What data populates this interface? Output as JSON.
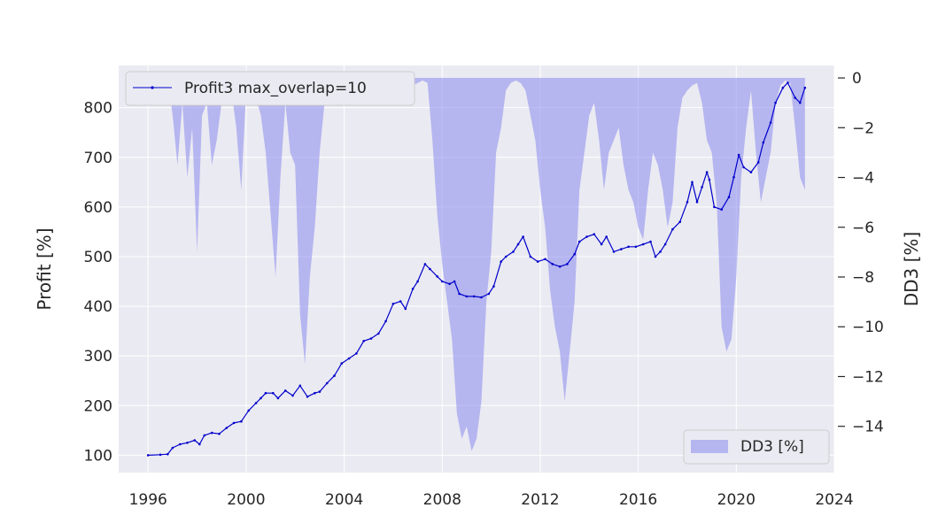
{
  "chart_data": {
    "type": "line",
    "title": "",
    "xlabel": "",
    "ylabel": "Profit [%]",
    "y2label": "DD3 [%]",
    "xlim": [
      1994.8,
      2024.0
    ],
    "ylim": [
      65,
      885
    ],
    "y2lim": [
      -15.86,
      0.5
    ],
    "grid": true,
    "background": "#eaeaf2",
    "x_ticks": [
      1996,
      2000,
      2004,
      2008,
      2012,
      2016,
      2020,
      2024
    ],
    "y_ticks": [
      100,
      200,
      300,
      400,
      500,
      600,
      700,
      800
    ],
    "y2_ticks": [
      0,
      -2,
      -4,
      -6,
      -8,
      -10,
      -12,
      -14
    ],
    "y2_tick_labels": [
      "0",
      "−2",
      "−4",
      "−6",
      "−8",
      "−10",
      "−12",
      "−14"
    ],
    "legends": [
      {
        "label": "Profit3 max_overlap=10",
        "placement": "top-left",
        "kind": "line"
      },
      {
        "label": "DD3 [%]",
        "placement": "bottom-right",
        "kind": "area"
      }
    ],
    "series": [
      {
        "name": "Profit3 max_overlap=10",
        "axis": "left",
        "kind": "line",
        "color": "#0000cc",
        "x": [
          1996.0,
          1996.5,
          1996.8,
          1997.0,
          1997.3,
          1997.6,
          1997.9,
          1998.1,
          1998.3,
          1998.6,
          1998.9,
          1999.2,
          1999.5,
          1999.8,
          2000.1,
          2000.4,
          2000.6,
          2000.8,
          2001.1,
          2001.3,
          2001.6,
          2001.9,
          2002.2,
          2002.5,
          2002.8,
          2003.0,
          2003.3,
          2003.6,
          2003.9,
          2004.2,
          2004.5,
          2004.8,
          2005.1,
          2005.4,
          2005.7,
          2006.0,
          2006.3,
          2006.5,
          2006.8,
          2007.0,
          2007.3,
          2007.5,
          2007.8,
          2008.0,
          2008.3,
          2008.5,
          2008.7,
          2009.0,
          2009.3,
          2009.6,
          2009.9,
          2010.1,
          2010.4,
          2010.6,
          2010.9,
          2011.1,
          2011.3,
          2011.6,
          2011.9,
          2012.2,
          2012.5,
          2012.8,
          2013.1,
          2013.4,
          2013.6,
          2013.9,
          2014.2,
          2014.5,
          2014.7,
          2015.0,
          2015.3,
          2015.6,
          2015.9,
          2016.2,
          2016.5,
          2016.7,
          2016.9,
          2017.1,
          2017.4,
          2017.7,
          2018.0,
          2018.2,
          2018.4,
          2018.6,
          2018.8,
          2018.9,
          2019.1,
          2019.4,
          2019.7,
          2019.9,
          2020.1,
          2020.3,
          2020.6,
          2020.9,
          2021.1,
          2021.4,
          2021.6,
          2021.9,
          2022.1,
          2022.4,
          2022.6,
          2022.8
        ],
        "y": [
          100,
          101,
          102,
          115,
          122,
          125,
          130,
          122,
          140,
          145,
          143,
          155,
          165,
          168,
          190,
          205,
          215,
          225,
          225,
          215,
          230,
          220,
          240,
          218,
          225,
          228,
          245,
          260,
          285,
          295,
          305,
          330,
          335,
          345,
          370,
          405,
          410,
          395,
          435,
          450,
          485,
          475,
          460,
          450,
          445,
          450,
          425,
          420,
          420,
          418,
          425,
          440,
          490,
          500,
          510,
          525,
          540,
          500,
          490,
          495,
          485,
          480,
          485,
          505,
          530,
          540,
          545,
          525,
          540,
          510,
          515,
          520,
          520,
          525,
          530,
          500,
          510,
          525,
          555,
          570,
          610,
          650,
          610,
          640,
          670,
          655,
          600,
          595,
          620,
          660,
          705,
          680,
          670,
          690,
          730,
          770,
          810,
          840,
          850,
          820,
          810,
          840
        ]
      },
      {
        "name": "DD3 [%]",
        "axis": "right",
        "kind": "area",
        "color": "#8080ee",
        "x": [
          1996.0,
          1996.8,
          1997.0,
          1997.2,
          1997.4,
          1997.6,
          1997.8,
          1998.0,
          1998.2,
          1998.4,
          1998.6,
          1998.8,
          1999.0,
          1999.2,
          1999.4,
          1999.6,
          1999.8,
          2000.0,
          2000.2,
          2000.4,
          2000.6,
          2000.8,
          2001.0,
          2001.2,
          2001.4,
          2001.6,
          2001.8,
          2002.0,
          2002.2,
          2002.4,
          2002.6,
          2002.8,
          2003.0,
          2003.2,
          2003.4,
          2003.6,
          2003.8,
          2004.0,
          2004.2,
          2004.4,
          2004.6,
          2004.8,
          2005.0,
          2005.2,
          2005.4,
          2005.6,
          2005.8,
          2006.0,
          2006.2,
          2006.4,
          2006.6,
          2006.8,
          2007.0,
          2007.2,
          2007.4,
          2007.6,
          2007.8,
          2008.0,
          2008.2,
          2008.4,
          2008.6,
          2008.8,
          2009.0,
          2009.2,
          2009.4,
          2009.6,
          2009.8,
          2010.0,
          2010.2,
          2010.4,
          2010.6,
          2010.8,
          2011.0,
          2011.2,
          2011.4,
          2011.6,
          2011.8,
          2012.0,
          2012.2,
          2012.4,
          2012.6,
          2012.8,
          2013.0,
          2013.2,
          2013.4,
          2013.6,
          2013.8,
          2014.0,
          2014.2,
          2014.4,
          2014.6,
          2014.8,
          2015.0,
          2015.2,
          2015.4,
          2015.6,
          2015.8,
          2016.0,
          2016.2,
          2016.4,
          2016.6,
          2016.8,
          2017.0,
          2017.2,
          2017.4,
          2017.6,
          2017.8,
          2018.0,
          2018.2,
          2018.4,
          2018.6,
          2018.8,
          2019.0,
          2019.2,
          2019.4,
          2019.6,
          2019.8,
          2020.0,
          2020.2,
          2020.4,
          2020.6,
          2020.8,
          2021.0,
          2021.2,
          2021.4,
          2021.6,
          2021.8,
          2022.0,
          2022.2,
          2022.4,
          2022.6,
          2022.8
        ],
        "y": [
          0,
          0,
          -1.5,
          -3.5,
          -1.0,
          -4.0,
          -2.0,
          -7.0,
          -1.5,
          -1.0,
          -3.5,
          -2.5,
          -1.0,
          -1.0,
          -0.5,
          -2.0,
          -4.5,
          -0.5,
          -0.3,
          -0.8,
          -1.5,
          -3.0,
          -5.5,
          -8.0,
          -4.0,
          -1.0,
          -3.0,
          -3.5,
          -9.5,
          -11.5,
          -8.0,
          -6.0,
          -3.0,
          -1.0,
          -0.3,
          -0.5,
          -0.3,
          -0.2,
          -0.5,
          -0.8,
          -0.5,
          -0.3,
          -0.2,
          -0.5,
          -1.0,
          -0.5,
          -0.3,
          -0.1,
          -0.2,
          -0.3,
          -0.5,
          -0.3,
          -0.2,
          -0.1,
          -0.2,
          -2.5,
          -5.5,
          -7.5,
          -9.0,
          -10.5,
          -13.5,
          -14.5,
          -14.0,
          -15.0,
          -14.5,
          -13.0,
          -9.0,
          -7.0,
          -3.0,
          -2.0,
          -0.5,
          -0.2,
          -0.1,
          -0.2,
          -0.5,
          -1.5,
          -2.5,
          -4.5,
          -6.0,
          -8.5,
          -10.0,
          -11.0,
          -13.0,
          -11.0,
          -9.0,
          -4.5,
          -3.0,
          -1.5,
          -1.0,
          -2.5,
          -4.5,
          -3.0,
          -2.5,
          -2.0,
          -3.5,
          -4.5,
          -5.0,
          -6.0,
          -6.5,
          -4.5,
          -3.0,
          -3.5,
          -4.5,
          -6.0,
          -5.0,
          -2.0,
          -0.8,
          -0.5,
          -0.3,
          -0.2,
          -1.0,
          -2.5,
          -3.0,
          -5.0,
          -10.0,
          -11.0,
          -10.5,
          -8.0,
          -4.0,
          -2.0,
          -0.5,
          -3.0,
          -5.0,
          -4.0,
          -3.0,
          -1.0,
          -0.3,
          -0.1,
          -0.2,
          -2.0,
          -4.0,
          -4.5
        ]
      }
    ]
  }
}
